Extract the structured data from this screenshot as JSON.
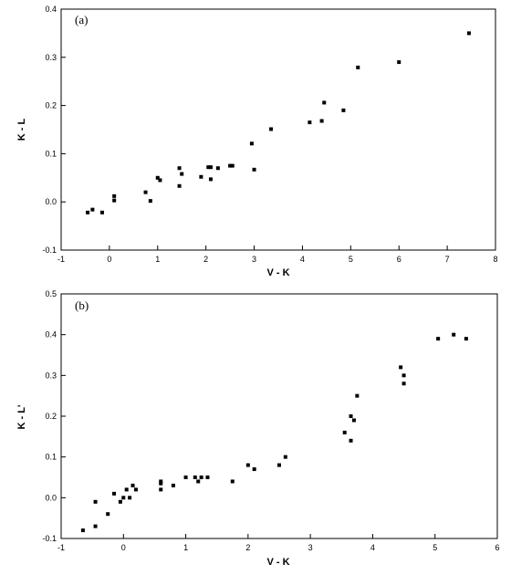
{
  "chart_data": [
    {
      "type": "scatter",
      "panel_label": "(a)",
      "xlabel": "V - K",
      "ylabel": "K - L",
      "xlim": [
        -1,
        8
      ],
      "ylim": [
        -0.1,
        0.4
      ],
      "xticks": [
        -1,
        0,
        1,
        2,
        3,
        4,
        5,
        6,
        7,
        8
      ],
      "yticks": [
        -0.1,
        0.0,
        0.1,
        0.2,
        0.3,
        0.4
      ],
      "xtick_labels": [
        "-1",
        "0",
        "1",
        "2",
        "3",
        "4",
        "5",
        "6",
        "7",
        "8"
      ],
      "ytick_labels": [
        "-0.1",
        "0.0",
        "0.1",
        "0.2",
        "0.3",
        "0.4"
      ],
      "grid": false,
      "series": [
        {
          "marker": "square",
          "color": "#000000",
          "points": [
            [
              -0.45,
              -0.022
            ],
            [
              -0.35,
              -0.016
            ],
            [
              -0.15,
              -0.022
            ],
            [
              0.1,
              0.012
            ],
            [
              0.1,
              0.003
            ],
            [
              0.75,
              0.02
            ],
            [
              0.85,
              0.002
            ],
            [
              1.0,
              0.05
            ],
            [
              1.05,
              0.045
            ],
            [
              1.45,
              0.07
            ],
            [
              1.5,
              0.058
            ],
            [
              1.45,
              0.033
            ],
            [
              1.9,
              0.052
            ],
            [
              2.05,
              0.072
            ],
            [
              2.1,
              0.072
            ],
            [
              2.1,
              0.047
            ],
            [
              2.25,
              0.07
            ],
            [
              2.5,
              0.075
            ],
            [
              2.55,
              0.075
            ],
            [
              2.95,
              0.121
            ],
            [
              3.0,
              0.067
            ],
            [
              3.35,
              0.151
            ],
            [
              4.15,
              0.165
            ],
            [
              4.4,
              0.168
            ],
            [
              4.45,
              0.206
            ],
            [
              4.85,
              0.19
            ],
            [
              5.15,
              0.279
            ],
            [
              6.0,
              0.29
            ],
            [
              7.45,
              0.35
            ]
          ]
        }
      ]
    },
    {
      "type": "scatter",
      "panel_label": "(b)",
      "xlabel": "V - K",
      "ylabel": "K - L'",
      "xlim": [
        -1,
        6
      ],
      "ylim": [
        -0.1,
        0.5
      ],
      "xticks": [
        -1,
        0,
        1,
        2,
        3,
        4,
        5,
        6
      ],
      "yticks": [
        -0.1,
        0.0,
        0.1,
        0.2,
        0.3,
        0.4,
        0.5
      ],
      "xtick_labels": [
        "-1",
        "0",
        "1",
        "2",
        "3",
        "4",
        "5",
        "6"
      ],
      "ytick_labels": [
        "-0.1",
        "0.0",
        "0.1",
        "0.2",
        "0.3",
        "0.4",
        "0.5"
      ],
      "grid": false,
      "series": [
        {
          "marker": "square",
          "color": "#000000",
          "points": [
            [
              -0.65,
              -0.08
            ],
            [
              -0.45,
              -0.07
            ],
            [
              -0.45,
              -0.01
            ],
            [
              -0.25,
              -0.04
            ],
            [
              -0.15,
              0.01
            ],
            [
              -0.05,
              -0.01
            ],
            [
              0.0,
              0.0
            ],
            [
              0.05,
              0.02
            ],
            [
              0.1,
              0.0
            ],
            [
              0.15,
              0.03
            ],
            [
              0.2,
              0.02
            ],
            [
              0.6,
              0.02
            ],
            [
              0.6,
              0.035
            ],
            [
              0.6,
              0.04
            ],
            [
              0.8,
              0.03
            ],
            [
              1.0,
              0.05
            ],
            [
              1.15,
              0.05
            ],
            [
              1.2,
              0.04
            ],
            [
              1.25,
              0.05
            ],
            [
              1.35,
              0.05
            ],
            [
              1.75,
              0.04
            ],
            [
              2.0,
              0.08
            ],
            [
              2.1,
              0.07
            ],
            [
              2.5,
              0.08
            ],
            [
              2.6,
              0.1
            ],
            [
              3.55,
              0.16
            ],
            [
              3.65,
              0.2
            ],
            [
              3.65,
              0.14
            ],
            [
              3.7,
              0.19
            ],
            [
              3.75,
              0.25
            ],
            [
              4.45,
              0.32
            ],
            [
              4.5,
              0.3
            ],
            [
              4.5,
              0.28
            ],
            [
              5.05,
              0.39
            ],
            [
              5.3,
              0.4
            ],
            [
              5.5,
              0.39
            ]
          ]
        }
      ]
    }
  ]
}
